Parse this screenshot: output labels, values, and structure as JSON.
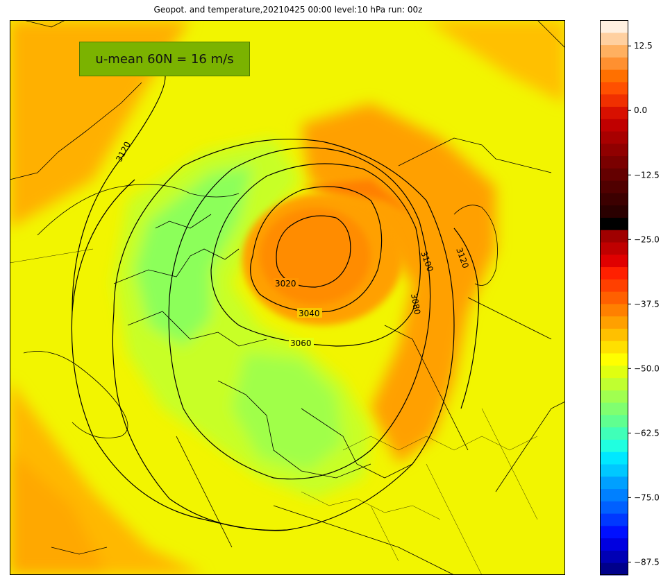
{
  "title": "Geopot. and temperature,20210425 00:00 level:10 hPa run: 00z",
  "info_box": {
    "text": "u-mean 60N = 16 m/s",
    "color": "#7bb300"
  },
  "contours": {
    "color": "#000000",
    "labels": [
      "3020",
      "3040",
      "3060",
      "3080",
      "3100",
      "3120",
      "3120"
    ]
  },
  "fill_colors": {
    "cold_core": "#ff8c00",
    "warm_ring": "#ff9d00",
    "background": "#f2f500",
    "cool_region": "#a6ff40",
    "cooler_region": "#79ff6e",
    "outer_orange": "#ffb000"
  },
  "colorbar": {
    "min": -90,
    "max": 17.5,
    "ticks": [
      "12.5",
      "0.0",
      "−12.5",
      "−25.0",
      "−37.5",
      "−50.0",
      "−62.5",
      "−75.0",
      "−87.5"
    ],
    "tick_values": [
      12.5,
      0,
      -12.5,
      -25,
      -37.5,
      -50,
      -62.5,
      -75,
      -87.5
    ],
    "colors": [
      "#00008b",
      "#0000b5",
      "#0000e0",
      "#0010ff",
      "#0038ff",
      "#0060ff",
      "#0080ff",
      "#00a0ff",
      "#00c8ff",
      "#00e8ff",
      "#20ffe0",
      "#40ffb8",
      "#60ff90",
      "#80ff70",
      "#a0ff50",
      "#c0ff30",
      "#e0ff10",
      "#ffff00",
      "#ffe000",
      "#ffc000",
      "#ffa000",
      "#ff8000",
      "#ff6000",
      "#ff4000",
      "#ff2000",
      "#e00000",
      "#c00000",
      "#a00000",
      "#000000",
      "#2a0000",
      "#3c0000",
      "#500000",
      "#640000",
      "#7a0000",
      "#900000",
      "#a80000",
      "#c00000",
      "#d81000",
      "#f03000",
      "#ff5000",
      "#ff7000",
      "#ff9030",
      "#ffb060",
      "#ffd0a0",
      "#fff0e0"
    ]
  }
}
